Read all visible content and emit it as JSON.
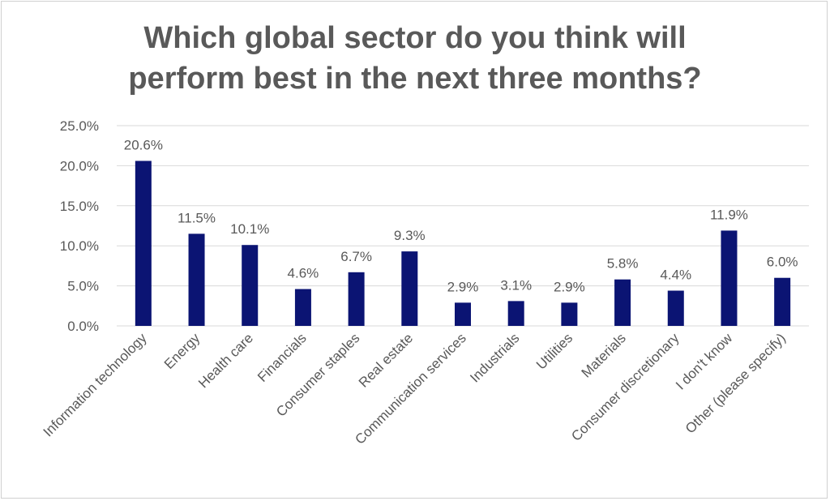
{
  "chart_data": {
    "type": "bar",
    "title_lines": [
      "Which global sector do you think will",
      "perform best in the next three months?"
    ],
    "categories": [
      "Information technology",
      "Energy",
      "Health care",
      "Financials",
      "Consumer staples",
      "Real estate",
      "Communication services",
      "Industrials",
      "Utilities",
      "Materials",
      "Consumer discretionary",
      "I don't know",
      "Other (please specify)"
    ],
    "values": [
      20.6,
      11.5,
      10.1,
      4.6,
      6.7,
      9.3,
      2.9,
      3.1,
      2.9,
      5.8,
      4.4,
      11.9,
      6.0
    ],
    "data_labels": [
      "20.6%",
      "11.5%",
      "10.1%",
      "4.6%",
      "6.7%",
      "9.3%",
      "2.9%",
      "3.1%",
      "2.9%",
      "5.8%",
      "4.4%",
      "11.9%",
      "6.0%"
    ],
    "y_ticks": [
      0,
      5,
      10,
      15,
      20,
      25
    ],
    "y_tick_labels": [
      "0.0%",
      "5.0%",
      "10.0%",
      "15.0%",
      "20.0%",
      "25.0%"
    ],
    "ylim": [
      0,
      25
    ],
    "xlabel": "",
    "ylabel": "",
    "grid": true,
    "legend": "none",
    "bar_color": "#0b1473",
    "gridline_color": "#d9d9d9",
    "text_color": "#595959"
  }
}
